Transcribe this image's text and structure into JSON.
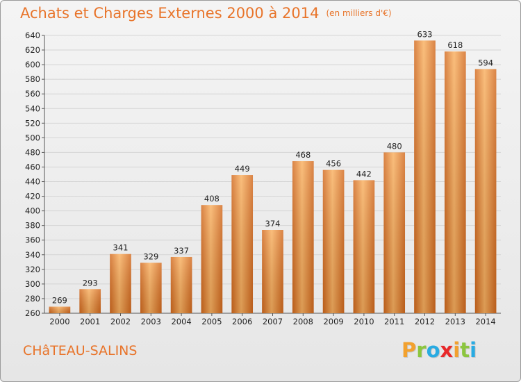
{
  "header": {
    "title": "Achats et Charges Externes 2000 à 2014",
    "subtitle": "(en milliers d'€)"
  },
  "footer": {
    "commune": "CHâTEAU-SALINS",
    "logo": {
      "letters": [
        "P",
        "r",
        "o",
        "x",
        "i",
        "t",
        "i"
      ],
      "colors": [
        "#f2a12e",
        "#8cc63f",
        "#29abe2",
        "#e8282a",
        "#f2a12e",
        "#8cc63f",
        "#29abe2"
      ]
    }
  },
  "chart_data": {
    "type": "bar",
    "title": "Achats et Charges Externes 2000 à 2014",
    "subtitle": "(en milliers d'€)",
    "categories": [
      "2000",
      "2001",
      "2002",
      "2003",
      "2004",
      "2005",
      "2006",
      "2007",
      "2008",
      "2009",
      "2010",
      "2011",
      "2012",
      "2013",
      "2014"
    ],
    "values": [
      269,
      293,
      341,
      329,
      337,
      408,
      449,
      374,
      468,
      456,
      442,
      480,
      633,
      618,
      594
    ],
    "ylim": [
      260,
      640
    ],
    "ytick_step": 20,
    "grid": true,
    "bar_color": "#f0923a",
    "bar_color_dark": "#d2691e",
    "bar_color_light": "#f9b060"
  }
}
